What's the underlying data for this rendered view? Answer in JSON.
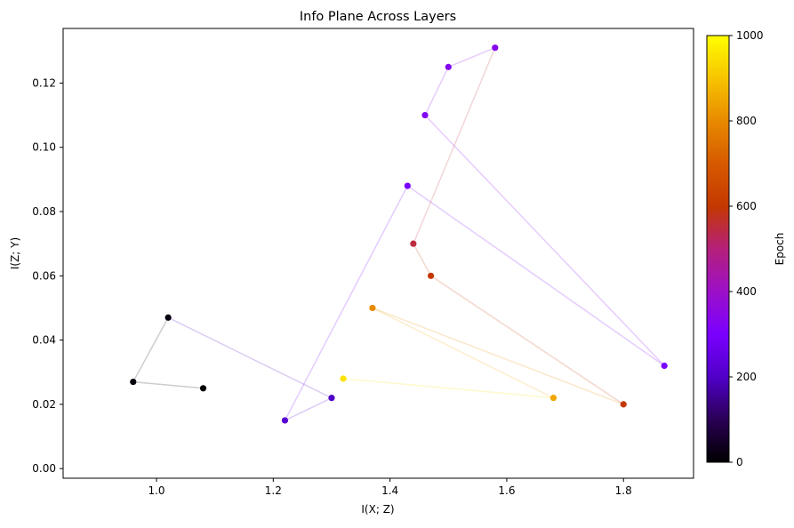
{
  "chart_data": {
    "type": "scatter",
    "title": "Info Plane Across Layers",
    "xlabel": "I(X; Z)",
    "ylabel": "I(Z; Y)",
    "xlim": [
      0.84,
      1.92
    ],
    "ylim": [
      -0.003,
      0.137
    ],
    "xticks": [
      {
        "value": 1.0,
        "label": "1.0"
      },
      {
        "value": 1.2,
        "label": "1.2"
      },
      {
        "value": 1.4,
        "label": "1.4"
      },
      {
        "value": 1.6,
        "label": "1.6"
      },
      {
        "value": 1.8,
        "label": "1.8"
      }
    ],
    "yticks": [
      {
        "value": 0.0,
        "label": "0.00"
      },
      {
        "value": 0.02,
        "label": "0.02"
      },
      {
        "value": 0.04,
        "label": "0.04"
      },
      {
        "value": 0.06,
        "label": "0.06"
      },
      {
        "value": 0.08,
        "label": "0.08"
      },
      {
        "value": 0.1,
        "label": "0.10"
      },
      {
        "value": 0.12,
        "label": "0.12"
      }
    ],
    "colorbar": {
      "label": "Epoch",
      "range": [
        0,
        1000
      ],
      "colormap": "gnuplot",
      "ticks": [
        {
          "value": 0,
          "label": "0"
        },
        {
          "value": 200,
          "label": "200"
        },
        {
          "value": 400,
          "label": "400"
        },
        {
          "value": 600,
          "label": "600"
        },
        {
          "value": 800,
          "label": "800"
        },
        {
          "value": 1000,
          "label": "1000"
        }
      ]
    },
    "grid": false,
    "legend": "none",
    "series": [
      {
        "points": [
          {
            "x": 1.08,
            "y": 0.025,
            "epoch": 0
          },
          {
            "x": 0.96,
            "y": 0.027,
            "epoch": 10
          },
          {
            "x": 1.02,
            "y": 0.047,
            "epoch": 20
          },
          {
            "x": 1.3,
            "y": 0.022,
            "epoch": 200
          },
          {
            "x": 1.22,
            "y": 0.015,
            "epoch": 220
          },
          {
            "x": 1.43,
            "y": 0.088,
            "epoch": 300
          },
          {
            "x": 1.46,
            "y": 0.11,
            "epoch": 320
          },
          {
            "x": 1.5,
            "y": 0.125,
            "epoch": 330
          },
          {
            "x": 1.58,
            "y": 0.131,
            "epoch": 335
          },
          {
            "x": 1.44,
            "y": 0.07,
            "epoch": 550
          },
          {
            "x": 1.47,
            "y": 0.06,
            "epoch": 600
          },
          {
            "x": 1.37,
            "y": 0.05,
            "epoch": 800
          },
          {
            "x": 1.32,
            "y": 0.028,
            "epoch": 950
          },
          {
            "x": 1.68,
            "y": 0.022,
            "epoch": 850
          },
          {
            "x": 1.8,
            "y": 0.02,
            "epoch": 600
          },
          {
            "x": 1.87,
            "y": 0.032,
            "epoch": 300
          }
        ]
      }
    ]
  }
}
